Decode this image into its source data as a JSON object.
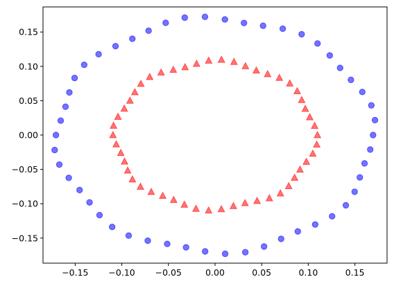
{
  "chart_data": {
    "type": "scatter",
    "title": "",
    "xlabel": "",
    "ylabel": "",
    "xlim": [
      -0.1845,
      0.1845
    ],
    "ylim": [
      -0.1865,
      0.1865
    ],
    "x_ticks": [
      -0.15,
      -0.1,
      -0.05,
      0.0,
      0.05,
      0.1,
      0.15
    ],
    "x_tick_labels": [
      "−0.15",
      "−0.10",
      "−0.05",
      "0.00",
      "0.05",
      "0.10",
      "0.15"
    ],
    "y_ticks": [
      -0.15,
      -0.1,
      -0.05,
      0.0,
      0.05,
      0.1,
      0.15
    ],
    "y_tick_labels": [
      "−0.15",
      "−0.10",
      "−0.05",
      "0.00",
      "0.05",
      "0.10",
      "0.15"
    ],
    "grid": false,
    "series": [
      {
        "marker": "circle",
        "color": "#0000ff",
        "alpha": 0.55,
        "shape": "ring",
        "count": 50,
        "radius_x": 0.1695,
        "radius_y": 0.17,
        "jitter": 0.004
      },
      {
        "marker": "triangle",
        "color": "#ff0000",
        "alpha": 0.55,
        "shape": "ring",
        "count": 50,
        "radius_x": 0.107,
        "radius_y": 0.107,
        "jitter": 0.003
      }
    ]
  }
}
